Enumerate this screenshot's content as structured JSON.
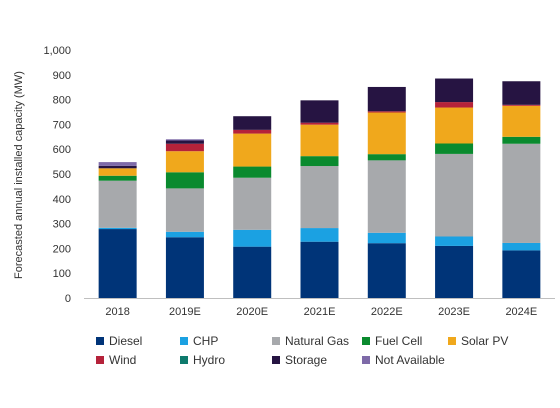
{
  "chart_data": {
    "type": "bar",
    "stacked": true,
    "ylabel": "Forecasted annual installed capacity (MW)",
    "xlabel": "",
    "title": "",
    "ylim": [
      0,
      1000
    ],
    "yticks": [
      0,
      100,
      200,
      300,
      400,
      500,
      600,
      700,
      800,
      900,
      1000
    ],
    "ytick_labels": [
      "0",
      "100",
      "200",
      "300",
      "400",
      "500",
      "600",
      "700",
      "800",
      "900",
      "1,000"
    ],
    "grid": false,
    "legend_position": "bottom",
    "categories": [
      "2018",
      "2019E",
      "2020E",
      "2021E",
      "2022E",
      "2023E",
      "2024E"
    ],
    "series": [
      {
        "name": "Diesel",
        "color": "#003478",
        "values": [
          278,
          245,
          207,
          227,
          221,
          210,
          192
        ]
      },
      {
        "name": "CHP",
        "color": "#1ba1e2",
        "values": [
          5,
          22,
          68,
          55,
          42,
          38,
          30
        ]
      },
      {
        "name": "Natural Gas",
        "color": "#a7a9ac",
        "values": [
          190,
          175,
          210,
          250,
          292,
          333,
          400
        ]
      },
      {
        "name": "Fuel Cell",
        "color": "#0a8a2e",
        "values": [
          20,
          65,
          45,
          40,
          25,
          42,
          28
        ]
      },
      {
        "name": "Solar PV",
        "color": "#f0a81c",
        "values": [
          30,
          85,
          133,
          127,
          168,
          145,
          125
        ]
      },
      {
        "name": "Wind",
        "color": "#b5223a",
        "values": [
          0,
          30,
          15,
          8,
          5,
          22,
          4
        ]
      },
      {
        "name": "Hydro",
        "color": "#0e7a6d",
        "values": [
          0,
          0,
          0,
          0,
          0,
          0,
          0
        ]
      },
      {
        "name": "Storage",
        "color": "#261442",
        "values": [
          10,
          13,
          55,
          90,
          98,
          95,
          95
        ]
      },
      {
        "name": "Not Available",
        "color": "#7e6aa8",
        "values": [
          15,
          5,
          0,
          0,
          0,
          0,
          0
        ]
      }
    ]
  }
}
